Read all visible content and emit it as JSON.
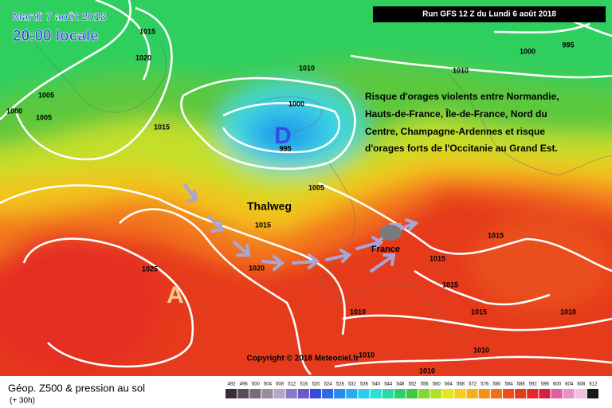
{
  "header": {
    "date": "Mardi 7 août 2018",
    "time": "20:00 locale",
    "run": "Run GFS 12 Z du Lundi 6 août 2018"
  },
  "annotation": [
    "Risque d'orages violents entre Normandie,",
    "Hauts-de-France, Île-de-France, Nord du",
    "Centre, Champagne-Ardennes et risque",
    "d'orages forts de l'Occitanie au Grand Est."
  ],
  "labels": {
    "low": "D",
    "high": "A",
    "trough": "Thalweg",
    "country": "France"
  },
  "isobars": [
    1015,
    1020,
    1005,
    1000,
    1005,
    1015,
    1010,
    1000,
    995,
    1005,
    1015,
    1020,
    1025,
    1010,
    1000,
    995,
    1015,
    1015,
    1015,
    1010,
    1015,
    1010,
    1010,
    1010,
    1010
  ],
  "copyright": "Copyright © 2018 Meteociel.fr",
  "footer": {
    "title": "Géop. Z500 & pression au sol",
    "lead": "(+ 30h)"
  },
  "legend": {
    "scale": [
      492,
      496,
      500,
      504,
      508,
      512,
      516,
      520,
      524,
      528,
      532,
      536,
      540,
      544,
      548,
      552,
      556,
      560,
      564,
      568,
      572,
      576,
      580,
      584,
      588,
      592,
      596,
      600,
      604,
      608,
      612
    ]
  }
}
